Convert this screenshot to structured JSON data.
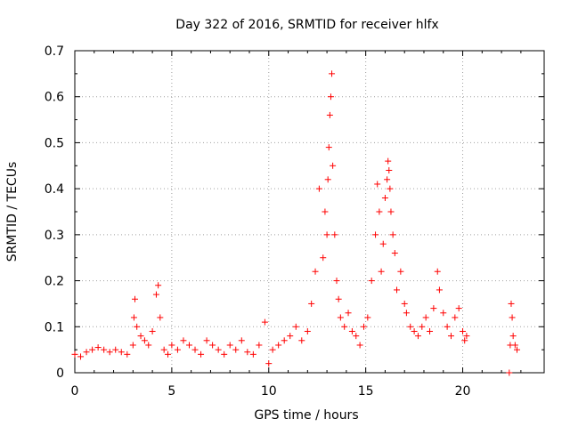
{
  "chart_data": {
    "type": "scatter",
    "title": "Day 322 of 2016, SRMTID for receiver hlfx",
    "xlabel": "GPS time / hours",
    "ylabel": "SRMTID / TECUs",
    "xlim": [
      0,
      24.2
    ],
    "ylim": [
      0,
      0.7
    ],
    "x_ticks": [
      "0",
      "5",
      "10",
      "15",
      "20"
    ],
    "x_tick_values": [
      0,
      5,
      10,
      15,
      20
    ],
    "y_ticks": [
      "0",
      "0.1",
      "0.2",
      "0.3",
      "0.4",
      "0.5",
      "0.6",
      "0.7"
    ],
    "y_tick_values": [
      0,
      0.1,
      0.2,
      0.3,
      0.4,
      0.5,
      0.6,
      0.7
    ],
    "grid": true,
    "marker": "plus",
    "series": [
      {
        "name": "SRMTID",
        "color": "#ff0000",
        "x": [
          0.0,
          0.3,
          0.6,
          0.9,
          1.2,
          1.5,
          1.8,
          2.1,
          2.4,
          2.7,
          3.0,
          3.05,
          3.1,
          3.2,
          3.4,
          3.6,
          3.8,
          4.0,
          4.2,
          4.3,
          4.4,
          4.6,
          4.8,
          5.0,
          5.3,
          5.6,
          5.9,
          6.2,
          6.5,
          6.8,
          7.1,
          7.4,
          7.7,
          8.0,
          8.3,
          8.6,
          8.9,
          9.2,
          9.5,
          9.8,
          10.0,
          10.2,
          10.5,
          10.8,
          11.1,
          11.4,
          11.7,
          12.0,
          12.2,
          12.4,
          12.6,
          12.8,
          12.9,
          13.0,
          13.05,
          13.1,
          13.15,
          13.2,
          13.25,
          13.3,
          13.4,
          13.5,
          13.6,
          13.7,
          13.9,
          14.1,
          14.3,
          14.5,
          14.7,
          14.9,
          15.1,
          15.3,
          15.5,
          15.6,
          15.7,
          15.8,
          15.9,
          16.0,
          16.1,
          16.15,
          16.2,
          16.25,
          16.3,
          16.4,
          16.5,
          16.6,
          16.8,
          17.0,
          17.1,
          17.3,
          17.5,
          17.7,
          17.9,
          18.1,
          18.3,
          18.5,
          18.7,
          18.8,
          19.0,
          19.2,
          19.4,
          19.6,
          19.8,
          20.0,
          20.1,
          20.2,
          22.4,
          22.45,
          22.5,
          22.55,
          22.6,
          22.7,
          22.8
        ],
        "y": [
          0.04,
          0.035,
          0.045,
          0.05,
          0.055,
          0.05,
          0.045,
          0.05,
          0.045,
          0.04,
          0.06,
          0.12,
          0.16,
          0.1,
          0.08,
          0.07,
          0.06,
          0.09,
          0.17,
          0.19,
          0.12,
          0.05,
          0.04,
          0.06,
          0.05,
          0.07,
          0.06,
          0.05,
          0.04,
          0.07,
          0.06,
          0.05,
          0.04,
          0.06,
          0.05,
          0.07,
          0.045,
          0.04,
          0.06,
          0.11,
          0.02,
          0.05,
          0.06,
          0.07,
          0.08,
          0.1,
          0.07,
          0.09,
          0.15,
          0.22,
          0.4,
          0.25,
          0.35,
          0.3,
          0.42,
          0.49,
          0.56,
          0.6,
          0.65,
          0.45,
          0.3,
          0.2,
          0.16,
          0.12,
          0.1,
          0.13,
          0.09,
          0.08,
          0.06,
          0.1,
          0.12,
          0.2,
          0.3,
          0.41,
          0.35,
          0.22,
          0.28,
          0.38,
          0.42,
          0.46,
          0.44,
          0.4,
          0.35,
          0.3,
          0.26,
          0.18,
          0.22,
          0.15,
          0.13,
          0.1,
          0.09,
          0.08,
          0.1,
          0.12,
          0.09,
          0.14,
          0.22,
          0.18,
          0.13,
          0.1,
          0.08,
          0.12,
          0.14,
          0.09,
          0.07,
          0.08,
          0.0,
          0.06,
          0.15,
          0.12,
          0.08,
          0.06,
          0.05
        ]
      }
    ]
  }
}
